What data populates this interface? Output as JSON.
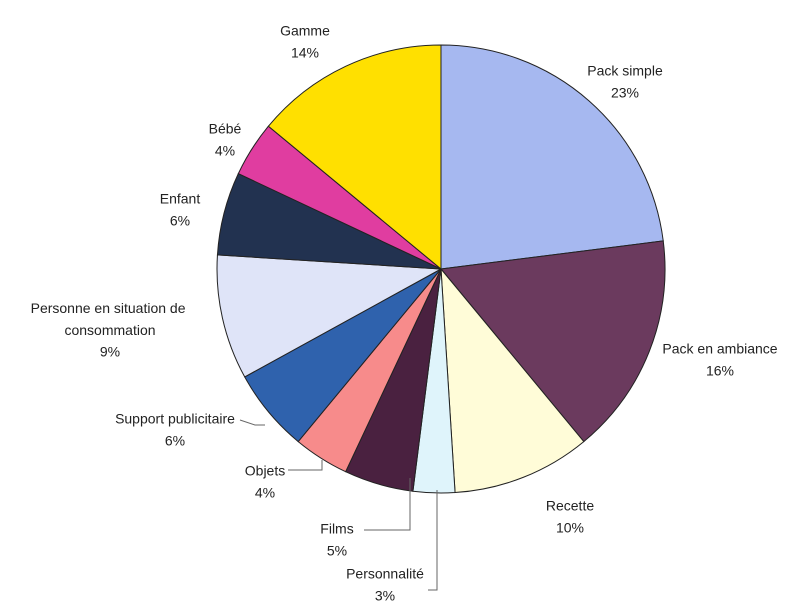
{
  "chart_data": {
    "type": "pie",
    "categories": [
      "Pack simple",
      "Pack en ambiance",
      "Recette",
      "Personnalité",
      "Films",
      "Objets",
      "Support publicitaire",
      "Personne en situation de consommation",
      "Enfant",
      "Bébé",
      "Gamme"
    ],
    "values": [
      23,
      16,
      10,
      3,
      5,
      4,
      6,
      9,
      6,
      4,
      14
    ],
    "value_labels": [
      "23%",
      "16%",
      "10%",
      "3%",
      "5%",
      "4%",
      "6%",
      "9%",
      "6%",
      "4%",
      "14%"
    ],
    "colors": [
      "#a6b8f0",
      "#6b3a5e",
      "#fffcd8",
      "#dff4fb",
      "#4a2140",
      "#f78b8b",
      "#2f62ad",
      "#dfe4f8",
      "#223250",
      "#e03da0",
      "#ffe000"
    ]
  }
}
